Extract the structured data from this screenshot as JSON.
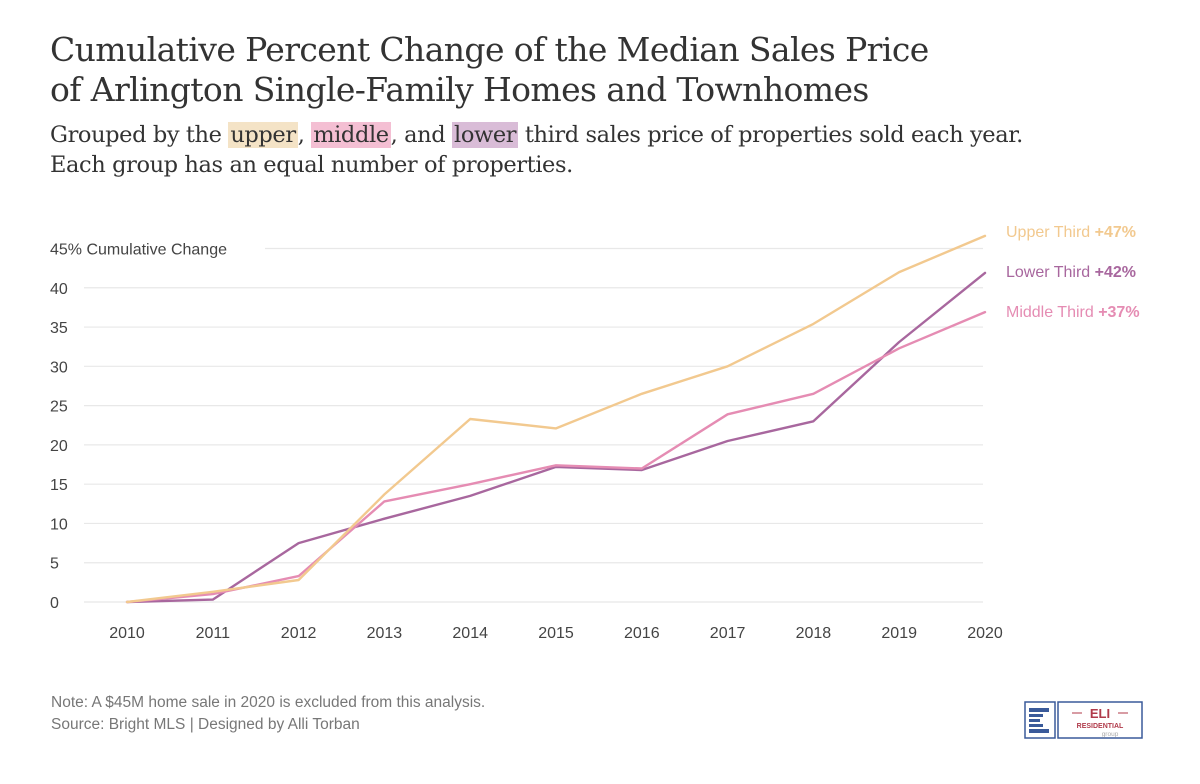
{
  "header": {
    "title_line1": "Cumulative Percent Change of the Median Sales Price",
    "title_line2": "of Arlington Single-Family Homes and Townhomes",
    "subtitle_parts": {
      "pre": "Grouped by the ",
      "upper": "upper",
      "sep1": ", ",
      "middle": "middle",
      "sep2": ", and ",
      "lower": "lower",
      "post": " third sales price of properties sold each year.",
      "line2": "Each group has an equal number of properties."
    }
  },
  "footer": {
    "note": "Note: A $45M home sale in 2020 is excluded from this analysis.",
    "source": "Source: Bright MLS | Designed by Alli Torban"
  },
  "logo": {
    "name": "ELI",
    "line2": "RESIDENTIAL",
    "line3": "group",
    "icon": "e-logo-icon"
  },
  "colors": {
    "upper": "#f2c98f",
    "middle": "#e58cb3",
    "lower": "#a8679e",
    "grid": "#e8e8e8",
    "axis_text": "#444444"
  },
  "chart_data": {
    "type": "line",
    "title": "Cumulative Percent Change of the Median Sales Price of Arlington Single-Family Homes and Townhomes",
    "xlabel": "",
    "ylabel": "45% Cumulative Change",
    "x": [
      2010,
      2011,
      2012,
      2013,
      2014,
      2015,
      2016,
      2017,
      2018,
      2019,
      2020
    ],
    "x_tick_labels": [
      "2010",
      "2011",
      "2012",
      "2013",
      "2014",
      "2015",
      "2016",
      "2017",
      "2018",
      "2019",
      "2020"
    ],
    "y_ticks": [
      0,
      5,
      10,
      15,
      20,
      25,
      30,
      35,
      40,
      45
    ],
    "y_tick_labels": [
      "0",
      "5",
      "10",
      "15",
      "20",
      "25",
      "30",
      "35",
      "40",
      "45% Cumulative Change"
    ],
    "ylim": [
      0,
      45
    ],
    "grid": true,
    "legend_placement": "right (direct labels at line ends)",
    "series": [
      {
        "key": "upper",
        "name": "Upper Third",
        "end_label": "+47%",
        "values": [
          0,
          1.3,
          2.8,
          13.7,
          23.3,
          22.1,
          26.5,
          30.0,
          35.4,
          42.0,
          46.6
        ]
      },
      {
        "key": "lower",
        "name": "Lower Third",
        "end_label": "+42%",
        "values": [
          0,
          0.3,
          7.5,
          10.6,
          13.5,
          17.2,
          16.8,
          20.5,
          23.0,
          33.1,
          41.9
        ]
      },
      {
        "key": "middle",
        "name": "Middle Third",
        "end_label": "+37%",
        "values": [
          0,
          1.0,
          3.3,
          12.8,
          15.0,
          17.4,
          17.0,
          23.9,
          26.5,
          32.3,
          36.9
        ]
      }
    ]
  }
}
